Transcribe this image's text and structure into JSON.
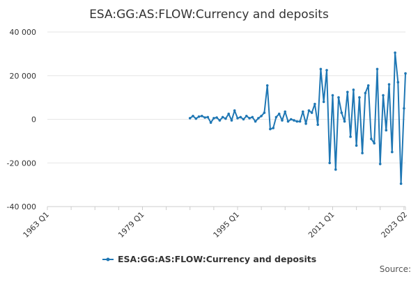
{
  "source_label": "Source:",
  "chart_data": {
    "type": "line",
    "title": "ESA:GG:AS:FLOW:Currency and deposits",
    "xlabel": "",
    "ylabel": "",
    "x_ticks": [
      "1963 Q1",
      "1979 Q1",
      "1995 Q1",
      "2011 Q1",
      "2023 Q2"
    ],
    "y_ticks": [
      "40 000",
      "20 000",
      "0",
      "-20 000",
      "-40 000"
    ],
    "xlim": [
      "1963 Q1",
      "2023 Q2"
    ],
    "ylim": [
      -40000,
      40000
    ],
    "grid": "horizontal",
    "legend_position": "bottom",
    "colors": {
      "series": "#1f77b4",
      "grid": "#e6e6e6",
      "axis": "#cccccc",
      "text": "#333333"
    },
    "series": [
      {
        "name": "ESA:GG:AS:FLOW:Currency and deposits",
        "x": [
          "1987 Q1",
          "1987 Q3",
          "1988 Q1",
          "1988 Q3",
          "1989 Q1",
          "1989 Q3",
          "1990 Q1",
          "1990 Q3",
          "1991 Q1",
          "1991 Q3",
          "1992 Q1",
          "1992 Q3",
          "1993 Q1",
          "1993 Q3",
          "1994 Q1",
          "1994 Q3",
          "1995 Q1",
          "1995 Q3",
          "1996 Q1",
          "1996 Q3",
          "1997 Q1",
          "1997 Q3",
          "1998 Q1",
          "1998 Q3",
          "1999 Q1",
          "1999 Q3",
          "2000 Q1",
          "2000 Q3",
          "2001 Q1",
          "2001 Q3",
          "2002 Q1",
          "2002 Q3",
          "2003 Q1",
          "2003 Q3",
          "2004 Q1",
          "2004 Q3",
          "2005 Q1",
          "2005 Q3",
          "2006 Q1",
          "2006 Q3",
          "2007 Q1",
          "2007 Q3",
          "2008 Q1",
          "2008 Q3",
          "2009 Q1",
          "2009 Q3",
          "2010 Q1",
          "2010 Q3",
          "2011 Q1",
          "2011 Q3",
          "2012 Q1",
          "2012 Q3",
          "2013 Q1",
          "2013 Q3",
          "2014 Q1",
          "2014 Q3",
          "2015 Q1",
          "2015 Q3",
          "2016 Q1",
          "2016 Q3",
          "2017 Q1",
          "2017 Q3",
          "2018 Q1",
          "2018 Q3",
          "2019 Q1",
          "2019 Q3",
          "2020 Q1",
          "2020 Q3",
          "2021 Q1",
          "2021 Q3",
          "2022 Q1",
          "2022 Q3",
          "2023 Q1",
          "2023 Q2"
        ],
        "values": [
          500,
          1500,
          300,
          1200,
          1500,
          800,
          1000,
          -1500,
          500,
          800,
          -500,
          1000,
          300,
          2500,
          -500,
          4000,
          500,
          1000,
          0,
          1500,
          500,
          1000,
          -1000,
          500,
          1500,
          3000,
          15500,
          -4500,
          -4000,
          1000,
          2500,
          -500,
          3500,
          -1000,
          0,
          -500,
          -1000,
          -1000,
          3500,
          -2000,
          4000,
          3000,
          7000,
          -2500,
          23000,
          8000,
          22500,
          -20000,
          11000,
          -23000,
          10000,
          3000,
          -1000,
          12500,
          -8000,
          13500,
          -12000,
          10000,
          -15500,
          12000,
          15500,
          -9000,
          -11000,
          23000,
          -20500,
          11000,
          -5000,
          16000,
          -15000,
          30500,
          17000,
          -29500,
          5000,
          21000
        ]
      }
    ]
  }
}
